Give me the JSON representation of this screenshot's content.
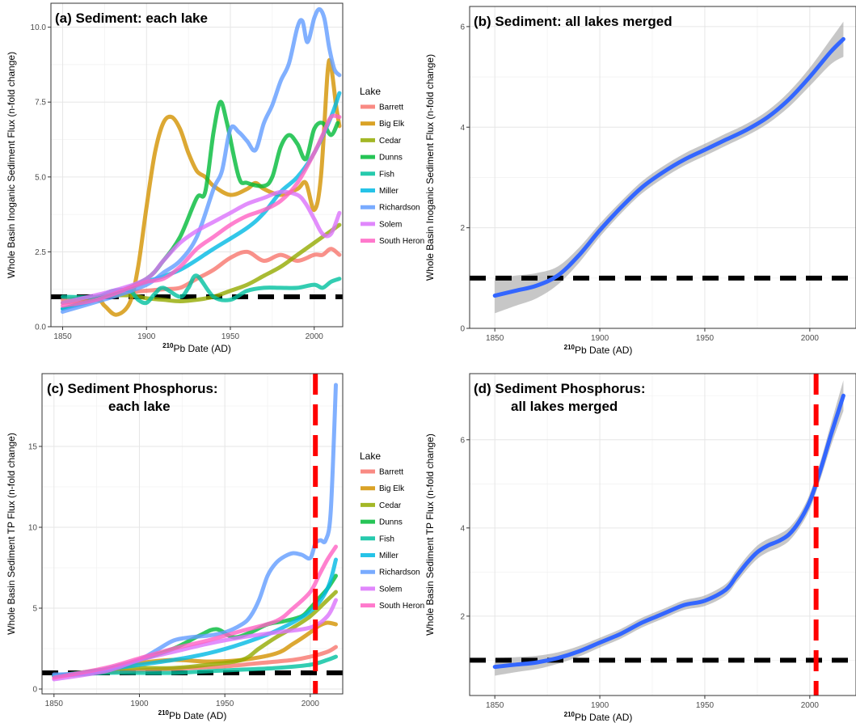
{
  "chart_data": [
    {
      "id": "a",
      "type": "line",
      "title": "(a) Sediment: each lake",
      "xlabel_sup": "210",
      "xlabel": "Pb Date (AD)",
      "ylabel": "Whole Basin Inoganic Sediment Flux (n-fold change)",
      "xlim": [
        1843,
        2017
      ],
      "ylim": [
        0,
        10.8
      ],
      "xticks": [
        1850,
        1900,
        1950,
        2000
      ],
      "yticks": [
        0.0,
        2.5,
        5.0,
        7.5,
        10.0
      ],
      "ytick_labels": [
        "0.0",
        "2.5",
        "5.0",
        "7.5",
        "10.0"
      ],
      "grid": true,
      "legend_title": "Lake",
      "legend_position": "right",
      "reference_lines": [
        {
          "axis": "y",
          "value": 1,
          "color": "#000000",
          "style": "dashed"
        }
      ],
      "series": [
        {
          "name": "Barrett",
          "color": "#F8766D",
          "x": [
            1850,
            1870,
            1890,
            1910,
            1920,
            1930,
            1940,
            1950,
            1960,
            1970,
            1980,
            1990,
            2000,
            2005,
            2010,
            2015
          ],
          "y": [
            0.9,
            1.0,
            1.15,
            1.25,
            1.3,
            1.6,
            1.9,
            2.3,
            2.5,
            2.2,
            2.4,
            2.2,
            2.4,
            2.4,
            2.6,
            2.4
          ]
        },
        {
          "name": "Big Elk",
          "color": "#D39200",
          "x": [
            1850,
            1870,
            1875,
            1882,
            1890,
            1895,
            1900,
            1905,
            1910,
            1915,
            1920,
            1925,
            1930,
            1935,
            1940,
            1950,
            1960,
            1965,
            1970,
            1980,
            1990,
            1995,
            2000,
            2004,
            2008,
            2010,
            2013,
            2015
          ],
          "y": [
            0.8,
            0.9,
            0.7,
            0.4,
            0.8,
            2.0,
            4.0,
            5.8,
            6.8,
            7.0,
            6.6,
            5.8,
            5.2,
            5.0,
            4.7,
            4.4,
            4.6,
            4.8,
            4.6,
            4.4,
            4.6,
            4.8,
            3.9,
            5.0,
            8.5,
            8.7,
            7.4,
            6.7
          ]
        },
        {
          "name": "Cedar",
          "color": "#93AA00",
          "x": [
            1850,
            1870,
            1890,
            1900,
            1910,
            1920,
            1930,
            1940,
            1950,
            1960,
            1970,
            1980,
            1990,
            2000,
            2010,
            2015
          ],
          "y": [
            0.8,
            1.0,
            1.05,
            0.95,
            0.9,
            0.85,
            0.9,
            1.0,
            1.2,
            1.4,
            1.7,
            2.0,
            2.4,
            2.8,
            3.2,
            3.4
          ]
        },
        {
          "name": "Dunns",
          "color": "#00BA38",
          "x": [
            1850,
            1880,
            1900,
            1910,
            1920,
            1930,
            1935,
            1940,
            1944,
            1948,
            1955,
            1960,
            1970,
            1975,
            1980,
            1985,
            1990,
            1995,
            2000,
            2005,
            2010,
            2014
          ],
          "y": [
            0.6,
            1.1,
            1.6,
            2.2,
            3.0,
            4.3,
            4.5,
            6.5,
            7.5,
            6.8,
            5.0,
            4.8,
            4.7,
            5.0,
            6.0,
            6.4,
            6.1,
            5.6,
            6.6,
            6.8,
            6.4,
            6.8
          ]
        },
        {
          "name": "Fish",
          "color": "#00C19F",
          "x": [
            1850,
            1870,
            1880,
            1890,
            1895,
            1900,
            1905,
            1910,
            1920,
            1925,
            1930,
            1940,
            1950,
            1960,
            1970,
            1980,
            1990,
            2000,
            2005,
            2010,
            2015
          ],
          "y": [
            1.0,
            1.0,
            1.2,
            1.2,
            0.9,
            0.8,
            1.1,
            1.3,
            1.0,
            1.3,
            1.7,
            1.0,
            0.9,
            1.2,
            1.3,
            1.3,
            1.3,
            1.4,
            1.3,
            1.5,
            1.6
          ]
        },
        {
          "name": "Miller",
          "color": "#00B9E3",
          "x": [
            1850,
            1870,
            1890,
            1900,
            1920,
            1940,
            1960,
            1970,
            1980,
            1990,
            2000,
            2010,
            2015
          ],
          "y": [
            0.6,
            0.9,
            1.3,
            1.5,
            1.9,
            2.6,
            3.3,
            3.8,
            4.5,
            5.0,
            5.8,
            7.0,
            7.8
          ]
        },
        {
          "name": "Richardson",
          "color": "#619CFF",
          "x": [
            1850,
            1880,
            1900,
            1910,
            1920,
            1930,
            1940,
            1945,
            1950,
            1955,
            1960,
            1965,
            1970,
            1975,
            1980,
            1985,
            1990,
            1993,
            1996,
            2000,
            2003,
            2006,
            2009,
            2012,
            2015
          ],
          "y": [
            0.5,
            1.0,
            1.4,
            1.8,
            2.2,
            3.0,
            4.6,
            5.2,
            6.6,
            6.5,
            6.2,
            5.9,
            6.8,
            7.4,
            8.2,
            8.8,
            10.0,
            10.2,
            9.5,
            10.3,
            10.6,
            10.3,
            9.3,
            8.6,
            8.4
          ]
        },
        {
          "name": "Solem",
          "color": "#DB72FB",
          "x": [
            1850,
            1880,
            1900,
            1910,
            1920,
            1930,
            1940,
            1950,
            1960,
            1970,
            1980,
            1990,
            1995,
            2000,
            2005,
            2010,
            2015
          ],
          "y": [
            0.8,
            1.2,
            1.6,
            2.2,
            2.8,
            3.2,
            3.5,
            3.8,
            4.1,
            4.3,
            4.5,
            4.4,
            4.1,
            3.6,
            3.1,
            3.1,
            3.8
          ]
        },
        {
          "name": "South Heron",
          "color": "#FF61C3",
          "x": [
            1850,
            1870,
            1890,
            1900,
            1910,
            1920,
            1930,
            1940,
            1950,
            1960,
            1970,
            1980,
            1990,
            2000,
            2005,
            2010,
            2015
          ],
          "y": [
            0.7,
            0.9,
            1.3,
            1.5,
            1.6,
            2.0,
            2.6,
            3.0,
            3.4,
            3.7,
            3.9,
            4.2,
            4.8,
            5.8,
            6.4,
            7.0,
            7.0
          ]
        }
      ]
    },
    {
      "id": "b",
      "type": "line",
      "title": "(b) Sediment: all lakes merged",
      "xlabel_sup": "210",
      "xlabel": "Pb Date (AD)",
      "ylabel": "Whole Basin Inoganic Sediment Flux (n-fold change)",
      "xlim": [
        1838,
        2022
      ],
      "ylim": [
        0,
        6.4
      ],
      "xticks": [
        1850,
        1900,
        1950,
        2000
      ],
      "yticks": [
        0,
        2,
        4,
        6
      ],
      "ytick_labels": [
        "0",
        "2",
        "4",
        "6"
      ],
      "grid": true,
      "reference_lines": [
        {
          "axis": "y",
          "value": 1,
          "color": "#000000",
          "style": "dashed"
        }
      ],
      "series": [
        {
          "color": "#3366FF",
          "x": [
            1850,
            1860,
            1870,
            1880,
            1890,
            1900,
            1910,
            1920,
            1930,
            1940,
            1950,
            1960,
            1970,
            1980,
            1990,
            2000,
            2010,
            2016
          ],
          "y": [
            0.65,
            0.75,
            0.85,
            1.05,
            1.45,
            1.95,
            2.4,
            2.8,
            3.1,
            3.35,
            3.55,
            3.75,
            3.95,
            4.2,
            4.55,
            5.0,
            5.5,
            5.75
          ],
          "band": [
            0.35,
            0.3,
            0.25,
            0.18,
            0.15,
            0.13,
            0.12,
            0.12,
            0.12,
            0.12,
            0.12,
            0.12,
            0.12,
            0.13,
            0.15,
            0.18,
            0.25,
            0.35
          ]
        }
      ]
    },
    {
      "id": "c",
      "type": "line",
      "title": "(c) Sediment Phosphorus:",
      "title_line2": "each lake",
      "xlabel_sup": "210",
      "xlabel": "Pb Date (AD)",
      "ylabel": "Whole Basin  Sediment TP Flux (n-fold change)",
      "xlim": [
        1843,
        2019
      ],
      "ylim": [
        -0.3,
        19.5
      ],
      "xticks": [
        1850,
        1900,
        1950,
        2000
      ],
      "yticks": [
        0,
        5,
        10,
        15
      ],
      "ytick_labels": [
        "0",
        "5",
        "10",
        "15"
      ],
      "grid": true,
      "legend_title": "Lake",
      "legend_position": "right",
      "reference_lines": [
        {
          "axis": "y",
          "value": 1,
          "color": "#000000",
          "style": "dashed"
        },
        {
          "axis": "x",
          "value": 2003,
          "color": "#FF0000",
          "style": "dashed"
        }
      ],
      "series": [
        {
          "name": "Barrett",
          "color": "#F8766D",
          "x": [
            1850,
            1870,
            1890,
            1910,
            1930,
            1950,
            1970,
            1990,
            2000,
            2010,
            2015
          ],
          "y": [
            0.8,
            1.0,
            1.1,
            1.2,
            1.3,
            1.4,
            1.6,
            1.8,
            2.0,
            2.3,
            2.6
          ]
        },
        {
          "name": "Big Elk",
          "color": "#D39200",
          "x": [
            1850,
            1880,
            1900,
            1920,
            1940,
            1960,
            1980,
            1990,
            2000,
            2005,
            2010,
            2015
          ],
          "y": [
            0.8,
            1.2,
            1.6,
            1.8,
            1.7,
            1.8,
            2.2,
            2.8,
            3.5,
            3.9,
            4.1,
            4.0
          ]
        },
        {
          "name": "Cedar",
          "color": "#93AA00",
          "x": [
            1850,
            1880,
            1900,
            1920,
            1940,
            1960,
            1970,
            1980,
            1990,
            2000,
            2010,
            2015
          ],
          "y": [
            0.8,
            1.2,
            1.3,
            1.3,
            1.5,
            1.8,
            2.5,
            3.2,
            3.8,
            4.5,
            5.5,
            6.0
          ]
        },
        {
          "name": "Dunns",
          "color": "#00BA38",
          "x": [
            1850,
            1880,
            1900,
            1920,
            1935,
            1945,
            1955,
            1965,
            1975,
            1985,
            1995,
            2000,
            2005,
            2010,
            2015
          ],
          "y": [
            0.8,
            1.2,
            1.8,
            2.5,
            3.3,
            3.7,
            3.2,
            3.5,
            4.0,
            4.2,
            4.5,
            5.0,
            5.6,
            6.2,
            7.0
          ]
        },
        {
          "name": "Fish",
          "color": "#00C19F",
          "x": [
            1850,
            1880,
            1900,
            1920,
            1940,
            1960,
            1980,
            2000,
            2010,
            2015
          ],
          "y": [
            0.8,
            1.0,
            1.0,
            1.0,
            1.1,
            1.2,
            1.3,
            1.5,
            1.8,
            2.0
          ]
        },
        {
          "name": "Miller",
          "color": "#00B9E3",
          "x": [
            1850,
            1880,
            1900,
            1920,
            1940,
            1960,
            1980,
            2000,
            2010,
            2015
          ],
          "y": [
            0.8,
            1.2,
            1.5,
            1.8,
            2.2,
            2.8,
            3.6,
            4.8,
            6.2,
            8.0
          ]
        },
        {
          "name": "Richardson",
          "color": "#619CFF",
          "x": [
            1850,
            1870,
            1890,
            1900,
            1910,
            1920,
            1930,
            1940,
            1950,
            1960,
            1965,
            1970,
            1975,
            1980,
            1985,
            1990,
            1995,
            2000,
            2003,
            2006,
            2009,
            2012,
            2015
          ],
          "y": [
            0.9,
            1.0,
            1.5,
            1.8,
            2.4,
            3.0,
            3.2,
            3.3,
            3.5,
            4.0,
            4.5,
            5.5,
            7.0,
            7.8,
            8.2,
            8.4,
            8.3,
            8.1,
            9.0,
            9.2,
            9.2,
            11.0,
            18.8
          ]
        },
        {
          "name": "Solem",
          "color": "#DB72FB",
          "x": [
            1850,
            1880,
            1900,
            1920,
            1940,
            1960,
            1980,
            2000,
            2010,
            2015
          ],
          "y": [
            0.6,
            1.1,
            1.8,
            2.3,
            2.8,
            3.2,
            3.5,
            3.8,
            4.5,
            5.5
          ]
        },
        {
          "name": "South Heron",
          "color": "#FF61C3",
          "x": [
            1850,
            1880,
            1900,
            1920,
            1940,
            1960,
            1980,
            1990,
            2000,
            2005,
            2010,
            2015
          ],
          "y": [
            0.7,
            1.3,
            1.9,
            2.5,
            3.0,
            3.6,
            4.2,
            5.0,
            6.0,
            7.0,
            8.0,
            8.8
          ]
        }
      ]
    },
    {
      "id": "d",
      "type": "line",
      "title": "(d) Sediment Phosphorus:",
      "title_line2": "all lakes merged",
      "xlabel_sup": "210",
      "xlabel": "Pb Date (AD)",
      "ylabel": "Whole Basin Sediment TP Flux (n-fold change)",
      "xlim": [
        1838,
        2022
      ],
      "ylim": [
        0.2,
        7.5
      ],
      "xticks": [
        1850,
        1900,
        1950,
        2000
      ],
      "yticks": [
        2,
        4,
        6
      ],
      "ytick_labels": [
        "2",
        "4",
        "6"
      ],
      "grid": true,
      "reference_lines": [
        {
          "axis": "y",
          "value": 1,
          "color": "#000000",
          "style": "dashed"
        },
        {
          "axis": "x",
          "value": 2003,
          "color": "#FF0000",
          "style": "dashed"
        }
      ],
      "series": [
        {
          "color": "#3366FF",
          "x": [
            1850,
            1860,
            1870,
            1880,
            1890,
            1900,
            1910,
            1920,
            1930,
            1940,
            1950,
            1960,
            1965,
            1970,
            1975,
            1980,
            1985,
            1990,
            1995,
            2000,
            2005,
            2010,
            2016
          ],
          "y": [
            0.85,
            0.9,
            0.95,
            1.05,
            1.2,
            1.4,
            1.6,
            1.85,
            2.05,
            2.25,
            2.35,
            2.6,
            2.9,
            3.2,
            3.45,
            3.6,
            3.7,
            3.85,
            4.15,
            4.6,
            5.3,
            6.1,
            7.0
          ],
          "band": [
            0.2,
            0.17,
            0.15,
            0.13,
            0.12,
            0.11,
            0.11,
            0.11,
            0.11,
            0.11,
            0.12,
            0.13,
            0.14,
            0.15,
            0.15,
            0.15,
            0.15,
            0.15,
            0.15,
            0.17,
            0.2,
            0.25,
            0.35
          ]
        }
      ]
    }
  ]
}
